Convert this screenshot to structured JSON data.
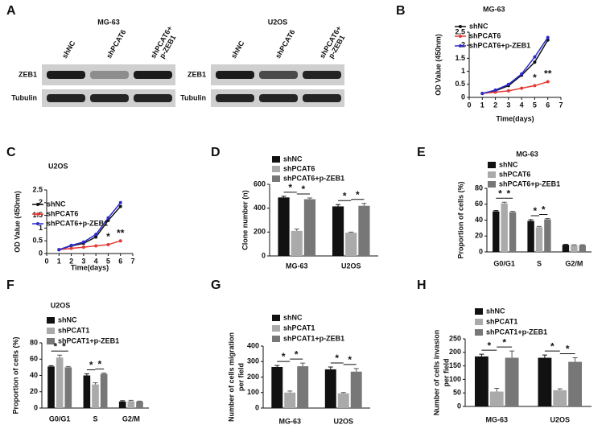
{
  "blots": {
    "panel": "A",
    "groups": [
      {
        "title": "MG-63",
        "lanes": [
          [
            "shNC"
          ],
          [
            "shPCAT6"
          ],
          [
            "shPCAT6+",
            "p-ZEB1"
          ]
        ],
        "rows": [
          "ZEB1",
          "Tubulin"
        ]
      },
      {
        "title": "U2OS",
        "lanes": [
          [
            "shNC"
          ],
          [
            "shPCAT6"
          ],
          [
            "shPCAT6+",
            "p-ZEB1"
          ]
        ],
        "rows": [
          "ZEB1",
          "Tubulin"
        ]
      }
    ]
  },
  "chart_data": [
    {
      "type": "line",
      "panel": "B",
      "title": "MG-63",
      "xlabel": "Time(days)",
      "ylabel": [
        "OD Value (450nm)"
      ],
      "x": [
        1,
        2,
        3,
        4,
        5,
        6
      ],
      "xlim": [
        0,
        7
      ],
      "xticks": [
        0,
        1,
        2,
        3,
        4,
        5,
        6,
        7
      ],
      "ylim": [
        0,
        2.5
      ],
      "yticks": [
        0,
        0.5,
        1.0,
        1.5,
        2.0,
        2.5
      ],
      "series": [
        {
          "name": "shNC",
          "color": "#111111",
          "values": [
            0.15,
            0.25,
            0.45,
            0.85,
            1.35,
            2.2
          ]
        },
        {
          "name": "shPCAT6",
          "color": "#e53935",
          "values": [
            0.15,
            0.2,
            0.25,
            0.35,
            0.45,
            0.6
          ]
        },
        {
          "name": "shPCAT6+p-ZEB1",
          "color": "#2b2bd0",
          "values": [
            0.15,
            0.28,
            0.5,
            0.9,
            1.55,
            2.3
          ]
        }
      ],
      "significance": [
        null,
        null,
        null,
        null,
        "*",
        "**"
      ]
    },
    {
      "type": "line",
      "panel": "C",
      "title": "U2OS",
      "xlabel": "Time(days)",
      "ylabel": [
        "OD Value (450nm)"
      ],
      "x": [
        1,
        2,
        3,
        4,
        5,
        6
      ],
      "xlim": [
        0,
        7
      ],
      "xticks": [
        0,
        1,
        2,
        3,
        4,
        5,
        6,
        7
      ],
      "ylim": [
        0,
        2.5
      ],
      "yticks": [
        0,
        0.5,
        1.0,
        1.5,
        2.0,
        2.5
      ],
      "series": [
        {
          "name": "shNC",
          "color": "#111111",
          "values": [
            0.15,
            0.3,
            0.4,
            0.65,
            1.3,
            1.85
          ]
        },
        {
          "name": "shPCAT6",
          "color": "#e53935",
          "values": [
            0.15,
            0.2,
            0.25,
            0.3,
            0.35,
            0.5
          ]
        },
        {
          "name": "shPCAT6+p-ZEB1",
          "color": "#2b2bd0",
          "values": [
            0.15,
            0.32,
            0.45,
            0.75,
            1.4,
            2.0
          ]
        }
      ],
      "significance": [
        null,
        null,
        null,
        null,
        "*",
        "**"
      ]
    },
    {
      "type": "bar",
      "panel": "D",
      "ylabel": [
        "Clone number (n)"
      ],
      "categories": [
        "MG-63",
        "U2OS"
      ],
      "ylim": [
        0,
        600
      ],
      "yticks": [
        0,
        200,
        400,
        600
      ],
      "series": [
        {
          "name": "shNC",
          "color": "#111111",
          "values": [
            490,
            415
          ],
          "errors": [
            10,
            15
          ]
        },
        {
          "name": "shPCAT6",
          "color": "#aaaaaa",
          "values": [
            210,
            195
          ],
          "errors": [
            15,
            5
          ]
        },
        {
          "name": "shPCAT6+p-ZEB1",
          "color": "#777777",
          "values": [
            475,
            420
          ],
          "errors": [
            10,
            20
          ]
        }
      ],
      "significance": [
        [
          "*",
          "*"
        ],
        [
          "*",
          "*"
        ]
      ]
    },
    {
      "type": "bar",
      "panel": "E",
      "title": "MG-63",
      "ylabel": [
        "Proportion of cells (%)"
      ],
      "categories": [
        "G0/G1",
        "S",
        "G2/M"
      ],
      "ylim": [
        0,
        80
      ],
      "yticks": [
        0,
        20,
        40,
        60,
        80
      ],
      "series": [
        {
          "name": "shNC",
          "color": "#111111",
          "values": [
            51,
            39,
            9
          ],
          "errors": [
            1,
            1.5,
            0.5
          ]
        },
        {
          "name": "shPCAT6",
          "color": "#aaaaaa",
          "values": [
            61,
            31,
            8.5
          ],
          "errors": [
            1.5,
            1,
            0.5
          ]
        },
        {
          "name": "shPCAT6+p-ZEB1",
          "color": "#777777",
          "values": [
            50,
            41,
            8.5
          ],
          "errors": [
            1,
            1,
            0.5
          ]
        }
      ],
      "significance": [
        [
          "*",
          "*"
        ],
        [
          "*",
          "*"
        ],
        []
      ]
    },
    {
      "type": "bar",
      "panel": "F",
      "title": "U2OS",
      "ylabel": [
        "Proportion of cells (%)"
      ],
      "categories": [
        "G0/G1",
        "S",
        "G2/M"
      ],
      "ylim": [
        0,
        80
      ],
      "yticks": [
        0,
        20,
        40,
        60,
        80
      ],
      "series": [
        {
          "name": "shNC",
          "color": "#111111",
          "values": [
            51,
            40,
            8
          ],
          "errors": [
            1,
            2,
            1
          ]
        },
        {
          "name": "shPCAT1",
          "color": "#aaaaaa",
          "values": [
            62,
            29,
            8.5
          ],
          "errors": [
            3,
            2,
            1
          ]
        },
        {
          "name": "shPCAT1+p-ZEB1",
          "color": "#777777",
          "values": [
            50,
            42,
            8
          ],
          "errors": [
            1,
            1,
            0.5
          ]
        }
      ],
      "significance": [
        [
          "*",
          "*"
        ],
        [
          "*",
          "*"
        ],
        []
      ]
    },
    {
      "type": "bar",
      "panel": "G",
      "ylabel": [
        "Number of cells migration",
        "per field"
      ],
      "categories": [
        "MG-63",
        "U2OS"
      ],
      "ylim": [
        0,
        400
      ],
      "yticks": [
        0,
        100,
        200,
        300,
        400
      ],
      "series": [
        {
          "name": "shNC",
          "color": "#111111",
          "values": [
            265,
            250
          ],
          "errors": [
            10,
            15
          ]
        },
        {
          "name": "shPCAT1",
          "color": "#aaaaaa",
          "values": [
            100,
            95
          ],
          "errors": [
            10,
            5
          ]
        },
        {
          "name": "shPCAT1+p-ZEB1",
          "color": "#777777",
          "values": [
            270,
            235
          ],
          "errors": [
            20,
            20
          ]
        }
      ],
      "significance": [
        [
          "*",
          "*"
        ],
        [
          "*",
          "*"
        ]
      ]
    },
    {
      "type": "bar",
      "panel": "H",
      "ylabel": [
        "Number of cells invasion",
        "per field"
      ],
      "categories": [
        "MG-63",
        "U2OS"
      ],
      "ylim": [
        0,
        250
      ],
      "yticks": [
        0,
        50,
        100,
        150,
        200,
        250
      ],
      "series": [
        {
          "name": "shNC",
          "color": "#111111",
          "values": [
            185,
            180
          ],
          "errors": [
            8,
            10
          ]
        },
        {
          "name": "shPCAT1",
          "color": "#aaaaaa",
          "values": [
            55,
            60
          ],
          "errors": [
            12,
            5
          ]
        },
        {
          "name": "shPCAT1+p-ZEB1",
          "color": "#777777",
          "values": [
            180,
            165
          ],
          "errors": [
            25,
            15
          ]
        }
      ],
      "significance": [
        [
          "*",
          "*"
        ],
        [
          "*",
          "*"
        ]
      ]
    }
  ]
}
